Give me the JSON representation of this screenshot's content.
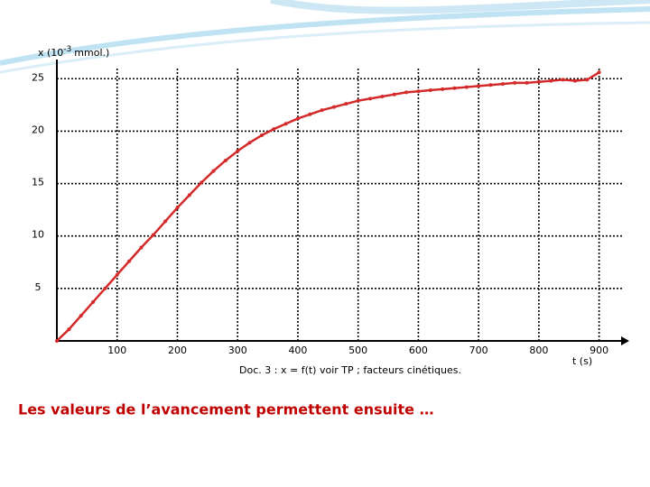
{
  "chart_data": {
    "type": "line",
    "ylabel": "x (10",
    "ylabel_exponent": "-3",
    "ylabel_unit": "mmol.)",
    "xlabel": "t (s)",
    "caption": "Doc. 3 : x = f(t) voir TP ; facteurs cinétiques.",
    "note": "Les valeurs de l’avancement permettent ensuite …",
    "x": [
      0,
      20,
      40,
      60,
      80,
      100,
      120,
      140,
      160,
      180,
      200,
      220,
      240,
      260,
      280,
      300,
      320,
      340,
      360,
      380,
      400,
      420,
      440,
      460,
      480,
      500,
      520,
      540,
      560,
      580,
      600,
      620,
      640,
      660,
      680,
      700,
      720,
      740,
      760,
      780,
      800,
      820,
      840,
      860,
      880,
      900
    ],
    "series": [
      {
        "name": "x",
        "color": "#d42a2a",
        "values": [
          0,
          1.1,
          2.4,
          3.7,
          5.0,
          6.3,
          7.6,
          8.9,
          10.1,
          11.4,
          12.7,
          13.9,
          15.1,
          16.2,
          17.2,
          18.1,
          18.9,
          19.6,
          20.2,
          20.7,
          21.2,
          21.6,
          22.0,
          22.3,
          22.6,
          22.9,
          23.1,
          23.3,
          23.5,
          23.7,
          23.8,
          23.9,
          24.0,
          24.1,
          24.2,
          24.3,
          24.4,
          24.5,
          24.6,
          24.6,
          24.7,
          24.8,
          24.9,
          24.8,
          24.9,
          25.6
        ]
      }
    ],
    "xlim": [
      0,
      950
    ],
    "ylim": [
      0,
      27
    ],
    "xticks": [
      100,
      200,
      300,
      400,
      500,
      600,
      700,
      800,
      900
    ],
    "yticks": [
      5,
      10,
      15,
      20,
      25
    ],
    "grid": true
  }
}
